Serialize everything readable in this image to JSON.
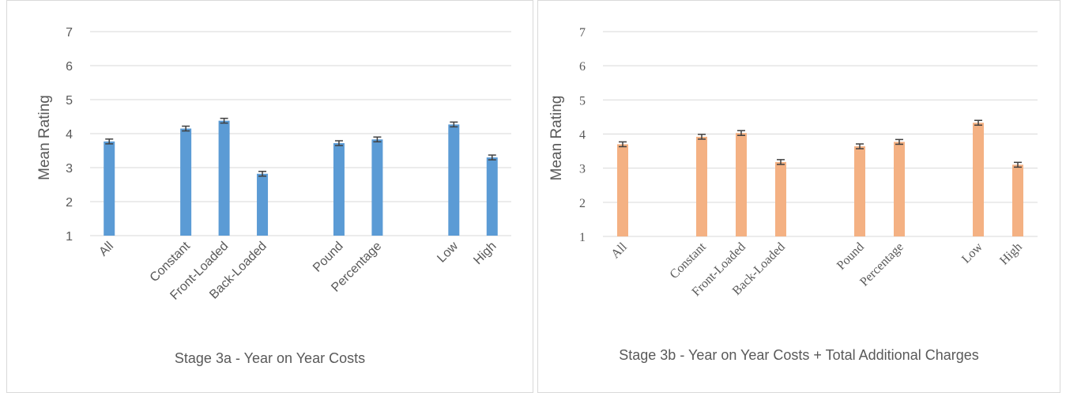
{
  "chart_data": [
    {
      "type": "bar",
      "title": "Stage 3a - Year on Year Costs",
      "y_label": "Mean Rating",
      "categories": [
        "All",
        null,
        "Constant",
        "Front-Loaded",
        "Back-Loaded",
        null,
        "Pound",
        "Percentage",
        null,
        "Low",
        "High"
      ],
      "series": [
        {
          "color": "#5b9bd5",
          "values": [
            3.77,
            null,
            4.15,
            4.38,
            2.82,
            null,
            3.72,
            3.83,
            null,
            4.27,
            3.3
          ],
          "errors": [
            0.07,
            null,
            0.07,
            0.07,
            0.07,
            null,
            0.07,
            0.07,
            null,
            0.07,
            0.07
          ]
        }
      ],
      "ylim": [
        1,
        7
      ],
      "yticks": [
        1,
        2,
        3,
        4,
        5,
        6,
        7
      ],
      "grid": true
    },
    {
      "type": "bar",
      "title": "Stage 3b - Year on Year Costs + Total Additional Charges",
      "y_label": "Mean Rating",
      "categories": [
        "All",
        null,
        "Constant",
        "Front-Loaded",
        "Back-Loaded",
        null,
        "Pound",
        "Percentage",
        null,
        "Low",
        "High"
      ],
      "series": [
        {
          "color": "#f4b183",
          "values": [
            3.7,
            null,
            3.92,
            4.03,
            3.18,
            null,
            3.64,
            3.77,
            null,
            4.33,
            3.1
          ],
          "errors": [
            0.07,
            null,
            0.07,
            0.07,
            0.07,
            null,
            0.07,
            0.07,
            null,
            0.07,
            0.07
          ]
        }
      ],
      "ylim": [
        1,
        7
      ],
      "yticks": [
        1,
        2,
        3,
        4,
        5,
        6,
        7
      ],
      "grid": true
    }
  ]
}
